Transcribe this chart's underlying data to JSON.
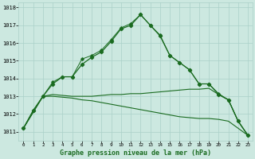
{
  "title": "Graphe pression niveau de la mer (hPa)",
  "bg_color": "#cce8e0",
  "grid_color": "#aad0c8",
  "line_color": "#1a6b20",
  "x_labels": [
    "0",
    "1",
    "2",
    "3",
    "4",
    "5",
    "6",
    "7",
    "8",
    "9",
    "10",
    "11",
    "12",
    "13",
    "14",
    "15",
    "16",
    "17",
    "18",
    "19",
    "20",
    "21",
    "22",
    "23"
  ],
  "ylim": [
    1010.5,
    1018.3
  ],
  "yticks": [
    1011,
    1012,
    1013,
    1014,
    1015,
    1016,
    1017,
    1018
  ],
  "series_main": [
    1011.2,
    1012.2,
    1013.0,
    1013.7,
    1014.1,
    1014.1,
    1014.8,
    1015.2,
    1015.5,
    1016.1,
    1016.8,
    1017.0,
    1017.6,
    1017.0,
    1016.4,
    1015.3,
    1014.9,
    1014.5,
    1013.7,
    1013.7,
    1013.1,
    1012.8,
    1011.6,
    1010.8
  ],
  "series_upper": [
    1011.2,
    1012.2,
    1013.0,
    1013.8,
    1014.1,
    1014.1,
    1015.1,
    1015.3,
    1015.6,
    1016.2,
    1016.85,
    1017.1,
    1017.6,
    1017.0,
    1016.45,
    1015.3,
    1014.9,
    1014.5,
    1013.7,
    1013.7,
    1013.15,
    1012.8,
    1011.6,
    1010.8
  ],
  "series_flat1": [
    1011.2,
    1012.1,
    1013.0,
    1013.1,
    1013.05,
    1013.0,
    1013.0,
    1013.0,
    1013.05,
    1013.1,
    1013.1,
    1013.15,
    1013.15,
    1013.2,
    1013.25,
    1013.3,
    1013.35,
    1013.4,
    1013.4,
    1013.45,
    1013.1,
    1012.8,
    1011.6,
    1010.8
  ],
  "series_flat2": [
    1011.2,
    1012.1,
    1013.0,
    1013.0,
    1012.95,
    1012.9,
    1012.8,
    1012.75,
    1012.65,
    1012.55,
    1012.45,
    1012.35,
    1012.25,
    1012.15,
    1012.05,
    1011.95,
    1011.85,
    1011.8,
    1011.75,
    1011.75,
    1011.7,
    1011.6,
    1011.2,
    1010.8
  ]
}
